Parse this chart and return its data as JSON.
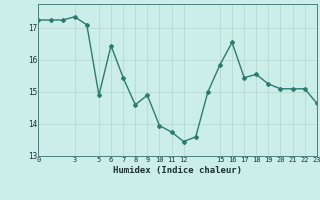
{
  "x": [
    0,
    1,
    2,
    3,
    4,
    5,
    6,
    7,
    8,
    9,
    10,
    11,
    12,
    13,
    14,
    15,
    16,
    17,
    18,
    19,
    20,
    21,
    22,
    23
  ],
  "y": [
    17.25,
    17.25,
    17.25,
    17.35,
    17.1,
    14.9,
    16.45,
    15.45,
    14.6,
    14.9,
    13.95,
    13.75,
    13.45,
    13.6,
    15.0,
    15.85,
    16.55,
    15.45,
    15.55,
    15.25,
    15.1,
    15.1,
    15.1,
    14.65
  ],
  "xlabel": "Humidex (Indice chaleur)",
  "ylabel": "",
  "xlim": [
    0,
    23
  ],
  "ylim": [
    13,
    17.75
  ],
  "yticks": [
    13,
    14,
    15,
    16,
    17
  ],
  "xticks": [
    0,
    3,
    5,
    6,
    7,
    8,
    9,
    10,
    11,
    12,
    15,
    16,
    17,
    18,
    19,
    20,
    21,
    22,
    23
  ],
  "line_color": "#2d7a6e",
  "bg_color": "#cceee8",
  "grid_color": "#b8d8d4",
  "marker": "D",
  "markersize": 2.0,
  "linewidth": 1.0
}
